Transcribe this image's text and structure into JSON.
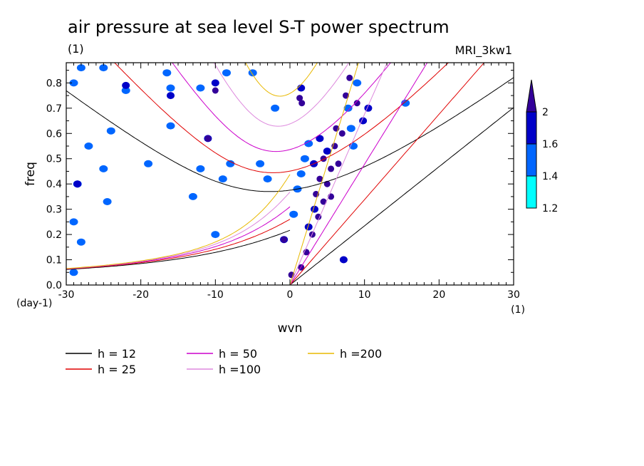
{
  "header": {
    "title": "air pressure at sea level S-T power spectrum",
    "subtitle_left": "(1)",
    "subtitle_right": "MRI_3kw1"
  },
  "chart_data": {
    "type": "heatmap",
    "title": "air pressure at sea level S-T power spectrum",
    "xlabel": "wvn",
    "ylabel": "freq",
    "x_unit_label": "(1)",
    "y_unit_label": "(day-1)",
    "xlim": [
      -30,
      30
    ],
    "ylim": [
      0,
      0.88
    ],
    "x_ticks": [
      -30,
      -20,
      -10,
      0,
      10,
      20,
      30
    ],
    "x_tick_labels": [
      "-30",
      "-20",
      "-10",
      "0",
      "10",
      "20",
      "30"
    ],
    "y_ticks": [
      0,
      0.1,
      0.2,
      0.3,
      0.4,
      0.5,
      0.6,
      0.7,
      0.8
    ],
    "y_tick_labels": [
      "0.0",
      "0.1",
      "0.2",
      "0.3",
      "0.4",
      "0.5",
      "0.6",
      "0.7",
      "0.8"
    ],
    "colorbar": {
      "levels": [
        1.2,
        1.4,
        1.6,
        2
      ],
      "labels": [
        "1.2",
        "1.4",
        "1.6",
        "2"
      ],
      "colors": [
        "#00ffff",
        "#0066ff",
        "#0000c8",
        "#330099"
      ]
    },
    "blobs": [
      {
        "x": 6,
        "y": 0.55,
        "level": 3
      },
      {
        "x": 6.2,
        "y": 0.62,
        "level": 3
      },
      {
        "x": 5.5,
        "y": 0.46,
        "level": 3
      },
      {
        "x": 5,
        "y": 0.4,
        "level": 3
      },
      {
        "x": 4.5,
        "y": 0.33,
        "level": 3
      },
      {
        "x": 3.8,
        "y": 0.27,
        "level": 3
      },
      {
        "x": 3,
        "y": 0.2,
        "level": 3
      },
      {
        "x": 2.2,
        "y": 0.13,
        "level": 3
      },
      {
        "x": 1.5,
        "y": 0.07,
        "level": 3
      },
      {
        "x": 0.2,
        "y": 0.04,
        "level": 3
      },
      {
        "x": 1.3,
        "y": 0.74,
        "level": 3
      },
      {
        "x": 7.5,
        "y": 0.75,
        "level": 3
      },
      {
        "x": 8,
        "y": 0.82,
        "level": 3
      },
      {
        "x": 9,
        "y": 0.72,
        "level": 3
      },
      {
        "x": 7,
        "y": 0.6,
        "level": 3
      },
      {
        "x": 6.5,
        "y": 0.48,
        "level": 3
      },
      {
        "x": 4.5,
        "y": 0.5,
        "level": 3
      },
      {
        "x": 4,
        "y": 0.42,
        "level": 3
      },
      {
        "x": 5.5,
        "y": 0.35,
        "level": 3
      },
      {
        "x": 3.5,
        "y": 0.36,
        "level": 3
      },
      {
        "x": 1.5,
        "y": 0.78,
        "level": 2
      },
      {
        "x": 1.6,
        "y": 0.72,
        "level": 3
      },
      {
        "x": -10,
        "y": 0.8,
        "level": 2
      },
      {
        "x": -10,
        "y": 0.77,
        "level": 3
      },
      {
        "x": -16,
        "y": 0.75,
        "level": 2
      },
      {
        "x": -0.8,
        "y": 0.18,
        "level": 2
      },
      {
        "x": -0.8,
        "y": 0.18,
        "level": 3
      },
      {
        "x": -11,
        "y": 0.58,
        "level": 2
      },
      {
        "x": -11,
        "y": 0.58,
        "level": 3
      },
      {
        "x": -22,
        "y": 0.79,
        "level": 2
      },
      {
        "x": 7.2,
        "y": 0.1,
        "level": 2
      },
      {
        "x": 10.5,
        "y": 0.7,
        "level": 2
      },
      {
        "x": 9.8,
        "y": 0.65,
        "level": 2
      },
      {
        "x": 5,
        "y": 0.53,
        "level": 2
      },
      {
        "x": 3.3,
        "y": 0.3,
        "level": 2
      },
      {
        "x": 2.5,
        "y": 0.23,
        "level": 2
      },
      {
        "x": 4,
        "y": 0.58,
        "level": 2
      },
      {
        "x": 3.2,
        "y": 0.48,
        "level": 2
      },
      {
        "x": 8.2,
        "y": 0.62,
        "level": 1
      },
      {
        "x": 7.8,
        "y": 0.7,
        "level": 1
      },
      {
        "x": 8.5,
        "y": 0.55,
        "level": 1
      },
      {
        "x": 2,
        "y": 0.5,
        "level": 1
      },
      {
        "x": 2.5,
        "y": 0.56,
        "level": 1
      },
      {
        "x": 1.5,
        "y": 0.44,
        "level": 1
      },
      {
        "x": 1,
        "y": 0.38,
        "level": 1
      },
      {
        "x": 0.5,
        "y": 0.28,
        "level": 1
      },
      {
        "x": -28,
        "y": 0.86,
        "level": 1
      },
      {
        "x": -25,
        "y": 0.86,
        "level": 1
      },
      {
        "x": -29,
        "y": 0.8,
        "level": 1
      },
      {
        "x": -16.5,
        "y": 0.84,
        "level": 1
      },
      {
        "x": -16,
        "y": 0.78,
        "level": 1
      },
      {
        "x": -8.5,
        "y": 0.84,
        "level": 1
      },
      {
        "x": -5,
        "y": 0.84,
        "level": 1
      },
      {
        "x": -12,
        "y": 0.78,
        "level": 1
      },
      {
        "x": -28.5,
        "y": 0.4,
        "level": 1
      },
      {
        "x": -28.5,
        "y": 0.4,
        "level": 2
      },
      {
        "x": -25,
        "y": 0.46,
        "level": 1
      },
      {
        "x": -24.5,
        "y": 0.33,
        "level": 1
      },
      {
        "x": -19,
        "y": 0.48,
        "level": 1
      },
      {
        "x": -22,
        "y": 0.77,
        "level": 1
      },
      {
        "x": -16,
        "y": 0.63,
        "level": 1
      },
      {
        "x": -27,
        "y": 0.55,
        "level": 1
      },
      {
        "x": -24,
        "y": 0.61,
        "level": 1
      },
      {
        "x": -13,
        "y": 0.35,
        "level": 1
      },
      {
        "x": -4,
        "y": 0.48,
        "level": 1
      },
      {
        "x": -3,
        "y": 0.42,
        "level": 1
      },
      {
        "x": -12,
        "y": 0.46,
        "level": 1
      },
      {
        "x": -9,
        "y": 0.42,
        "level": 1
      },
      {
        "x": -8,
        "y": 0.48,
        "level": 1
      },
      {
        "x": -29,
        "y": 0.05,
        "level": 1
      },
      {
        "x": -29,
        "y": 0.25,
        "level": 1
      },
      {
        "x": -28,
        "y": 0.17,
        "level": 1
      },
      {
        "x": -10,
        "y": 0.2,
        "level": 1
      },
      {
        "x": -2,
        "y": 0.7,
        "level": 1
      },
      {
        "x": 15.5,
        "y": 0.72,
        "level": 1
      },
      {
        "x": 9,
        "y": 0.8,
        "level": 1
      }
    ],
    "series": [
      {
        "name": "h = 12",
        "h": 12,
        "color": "#000000"
      },
      {
        "name": "h = 25",
        "h": 25,
        "color": "#e00000"
      },
      {
        "name": "h = 50",
        "h": 50,
        "color": "#cc00cc"
      },
      {
        "name": "h =100",
        "h": 100,
        "color": "#dd88dd"
      },
      {
        "name": "h =200",
        "h": 200,
        "color": "#e8b800"
      }
    ]
  }
}
